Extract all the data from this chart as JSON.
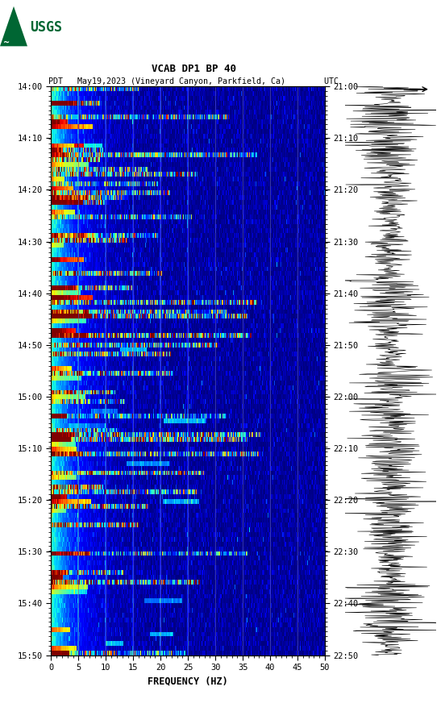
{
  "title_line1": "VCAB DP1 BP 40",
  "title_line2": "PDT   May19,2023 (Vineyard Canyon, Parkfield, Ca)        UTC",
  "xlabel": "FREQUENCY (HZ)",
  "freq_min": 0,
  "freq_max": 50,
  "freq_ticks": [
    0,
    5,
    10,
    15,
    20,
    25,
    30,
    35,
    40,
    45,
    50
  ],
  "pdt_ticks": [
    "14:00",
    "14:10",
    "14:20",
    "14:30",
    "14:40",
    "14:50",
    "15:00",
    "15:10",
    "15:20",
    "15:30",
    "15:40",
    "15:50"
  ],
  "utc_ticks": [
    "21:00",
    "21:10",
    "21:20",
    "21:30",
    "21:40",
    "21:50",
    "22:00",
    "22:10",
    "22:20",
    "22:30",
    "22:40",
    "22:50"
  ],
  "vertical_lines_freq": [
    5,
    10,
    15,
    20,
    25,
    30,
    35,
    40,
    45
  ],
  "colormap": "jet",
  "background_color": "#ffffff",
  "usgs_logo_color": "#006633",
  "num_time_rows": 120,
  "num_freq_cols": 500,
  "seed": 42
}
